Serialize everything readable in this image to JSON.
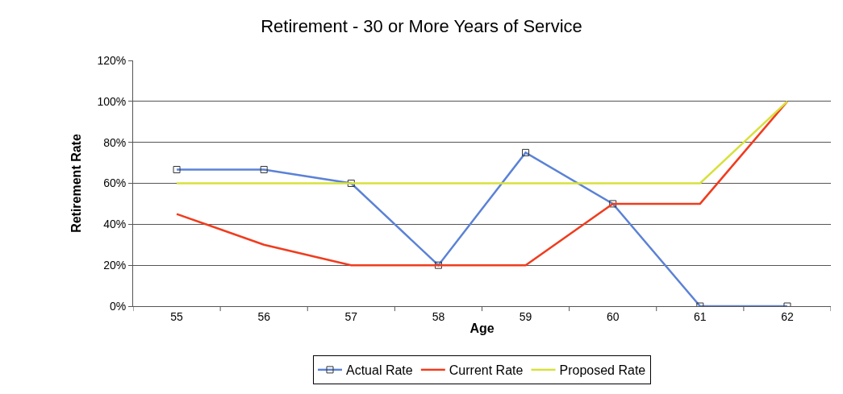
{
  "chart_data": {
    "type": "line",
    "title": "Retirement - 30 or More Years of Service",
    "xlabel": "Age",
    "ylabel": "Retirement Rate",
    "categories": [
      "55",
      "56",
      "57",
      "58",
      "59",
      "60",
      "61",
      "62"
    ],
    "series": [
      {
        "name": "Actual Rate",
        "color": "#5b82d6",
        "values": [
          0.667,
          0.667,
          0.6,
          0.2,
          0.75,
          0.5,
          0,
          0
        ],
        "marker": "square"
      },
      {
        "name": "Current Rate",
        "color": "#f03c1e",
        "values": [
          0.45,
          0.3,
          0.2,
          0.2,
          0.2,
          0.5,
          0.5,
          1.0
        ],
        "marker": "none"
      },
      {
        "name": "Proposed Rate",
        "color": "#d7e13c",
        "values": [
          0.6,
          0.6,
          0.6,
          0.6,
          0.6,
          0.6,
          0.6,
          1.0
        ],
        "marker": "none"
      }
    ],
    "ylim": [
      0,
      1.2
    ],
    "yticks": [
      {
        "value": 0,
        "label": "0%"
      },
      {
        "value": 0.2,
        "label": "20%"
      },
      {
        "value": 0.4,
        "label": "40%"
      },
      {
        "value": 0.6,
        "label": "60%"
      },
      {
        "value": 0.8,
        "label": "80%"
      },
      {
        "value": 1.0,
        "label": "100%"
      },
      {
        "value": 1.2,
        "label": "120%"
      }
    ],
    "grid": "y",
    "legend": "bottom",
    "line_style": "solid"
  }
}
